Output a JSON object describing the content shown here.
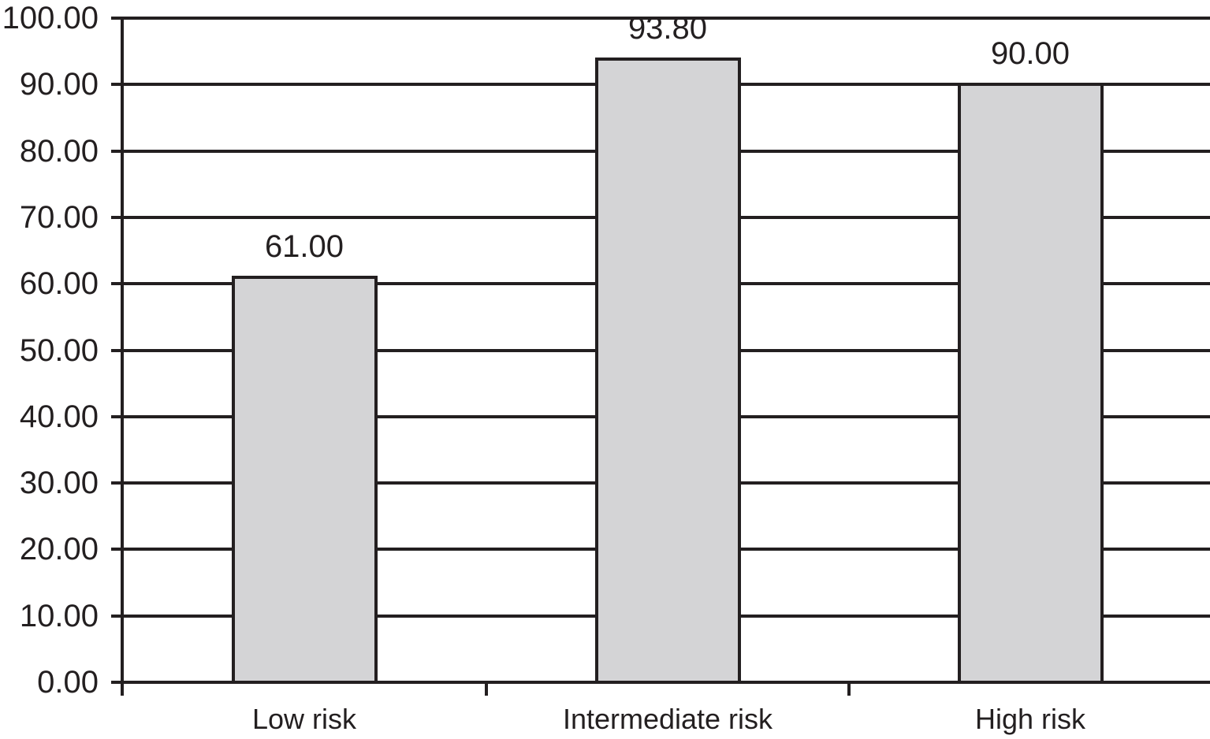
{
  "chart_data": {
    "type": "bar",
    "title": "",
    "xlabel": "",
    "ylabel": "",
    "categories": [
      "Low risk",
      "Intermediate risk",
      "High risk"
    ],
    "values": [
      61.0,
      93.8,
      90.0
    ],
    "value_labels": [
      "61.00",
      "93.80",
      "90.00"
    ],
    "ylim": [
      0,
      100
    ],
    "ytick_step": 10,
    "ytick_labels": [
      "0.00",
      "10.00",
      "20.00",
      "30.00",
      "40.00",
      "50.00",
      "60.00",
      "70.00",
      "80.00",
      "90.00",
      "100.00"
    ],
    "grid": "horizontal-full-width",
    "legend": "none",
    "colors": {
      "bar_fill": "#d4d4d6",
      "line": "#231f20",
      "text": "#231f20",
      "background": "#ffffff"
    }
  }
}
